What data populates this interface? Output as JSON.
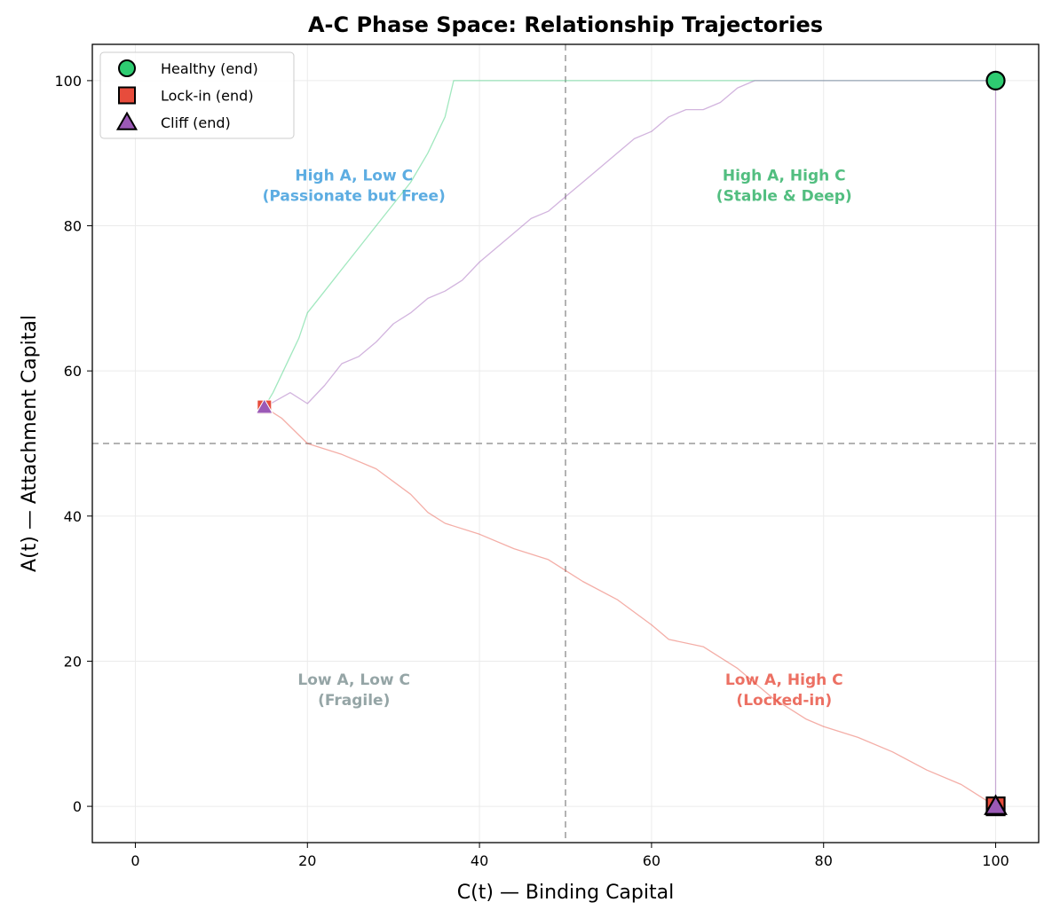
{
  "chart_data": {
    "type": "line",
    "title": "A-C Phase Space: Relationship Trajectories",
    "xlabel": "C(t) — Binding Capital",
    "ylabel": "A(t) — Attachment Capital",
    "xlim": [
      -5,
      105
    ],
    "ylim": [
      -5,
      105
    ],
    "xticks": [
      0,
      20,
      40,
      60,
      80,
      100
    ],
    "yticks": [
      0,
      20,
      40,
      60,
      80,
      100
    ],
    "grid": true,
    "reference_lines": {
      "x": 50,
      "y": 50
    },
    "legend_position": "top-left",
    "series": [
      {
        "name": "Healthy",
        "color": "#2ecc71",
        "marker": "circle",
        "end_label": "Healthy (end)",
        "points": [
          [
            15,
            55
          ],
          [
            16,
            57
          ],
          [
            17,
            59.5
          ],
          [
            18,
            62
          ],
          [
            19,
            64.5
          ],
          [
            20,
            68
          ],
          [
            22,
            71
          ],
          [
            24,
            74
          ],
          [
            26,
            77
          ],
          [
            28,
            80
          ],
          [
            30,
            83
          ],
          [
            32,
            86
          ],
          [
            34,
            90
          ],
          [
            36,
            95
          ],
          [
            37,
            100
          ],
          [
            45,
            100
          ],
          [
            55,
            100
          ],
          [
            65,
            100
          ],
          [
            75,
            100
          ],
          [
            85,
            100
          ],
          [
            95,
            100
          ],
          [
            100,
            100
          ]
        ],
        "end": [
          100,
          100
        ]
      },
      {
        "name": "Lock-in",
        "color": "#e74c3c",
        "marker": "square",
        "end_label": "Lock-in (end)",
        "points": [
          [
            15,
            55
          ],
          [
            17,
            53.5
          ],
          [
            20,
            50
          ],
          [
            24,
            48.5
          ],
          [
            28,
            46.5
          ],
          [
            32,
            43
          ],
          [
            34,
            40.5
          ],
          [
            36,
            39
          ],
          [
            40,
            37.5
          ],
          [
            44,
            35.5
          ],
          [
            48,
            34
          ],
          [
            52,
            31
          ],
          [
            56,
            28.5
          ],
          [
            60,
            25
          ],
          [
            62,
            23
          ],
          [
            66,
            22
          ],
          [
            70,
            19
          ],
          [
            74,
            15
          ],
          [
            78,
            12
          ],
          [
            80,
            11
          ],
          [
            84,
            9.5
          ],
          [
            88,
            7.5
          ],
          [
            92,
            5
          ],
          [
            96,
            3
          ],
          [
            100,
            0
          ]
        ],
        "end": [
          100,
          0
        ]
      },
      {
        "name": "Cliff",
        "color": "#9b59b6",
        "marker": "triangle",
        "end_label": "Cliff (end)",
        "points": [
          [
            15,
            55
          ],
          [
            18,
            57
          ],
          [
            20,
            55.5
          ],
          [
            22,
            58
          ],
          [
            24,
            61
          ],
          [
            26,
            62
          ],
          [
            28,
            64
          ],
          [
            30,
            66.5
          ],
          [
            32,
            68
          ],
          [
            34,
            70
          ],
          [
            36,
            71
          ],
          [
            38,
            72.5
          ],
          [
            40,
            75
          ],
          [
            42,
            77
          ],
          [
            44,
            79
          ],
          [
            46,
            81
          ],
          [
            48,
            82
          ],
          [
            50,
            84
          ],
          [
            52,
            86
          ],
          [
            54,
            88
          ],
          [
            56,
            90
          ],
          [
            58,
            92
          ],
          [
            60,
            93
          ],
          [
            62,
            95
          ],
          [
            64,
            96
          ],
          [
            66,
            96
          ],
          [
            68,
            97
          ],
          [
            70,
            99
          ],
          [
            72,
            100
          ],
          [
            80,
            100
          ],
          [
            88,
            100
          ],
          [
            95,
            100
          ],
          [
            100,
            100
          ],
          [
            100,
            0
          ]
        ],
        "end": [
          100,
          0
        ]
      }
    ],
    "quadrant_labels": [
      {
        "line1": "High A, Low C",
        "line2": "(Passionate but Free)",
        "x": 25,
        "y": 86,
        "color": "#5dade2"
      },
      {
        "line1": "High A, High C",
        "line2": "(Stable & Deep)",
        "x": 75,
        "y": 86,
        "color": "#52be80"
      },
      {
        "line1": "Low A, Low C",
        "line2": "(Fragile)",
        "x": 25,
        "y": 16.5,
        "color": "#95a5a6"
      },
      {
        "line1": "Low A, High C",
        "line2": "(Locked-in)",
        "x": 75,
        "y": 16.5,
        "color": "#ec7063"
      }
    ]
  }
}
